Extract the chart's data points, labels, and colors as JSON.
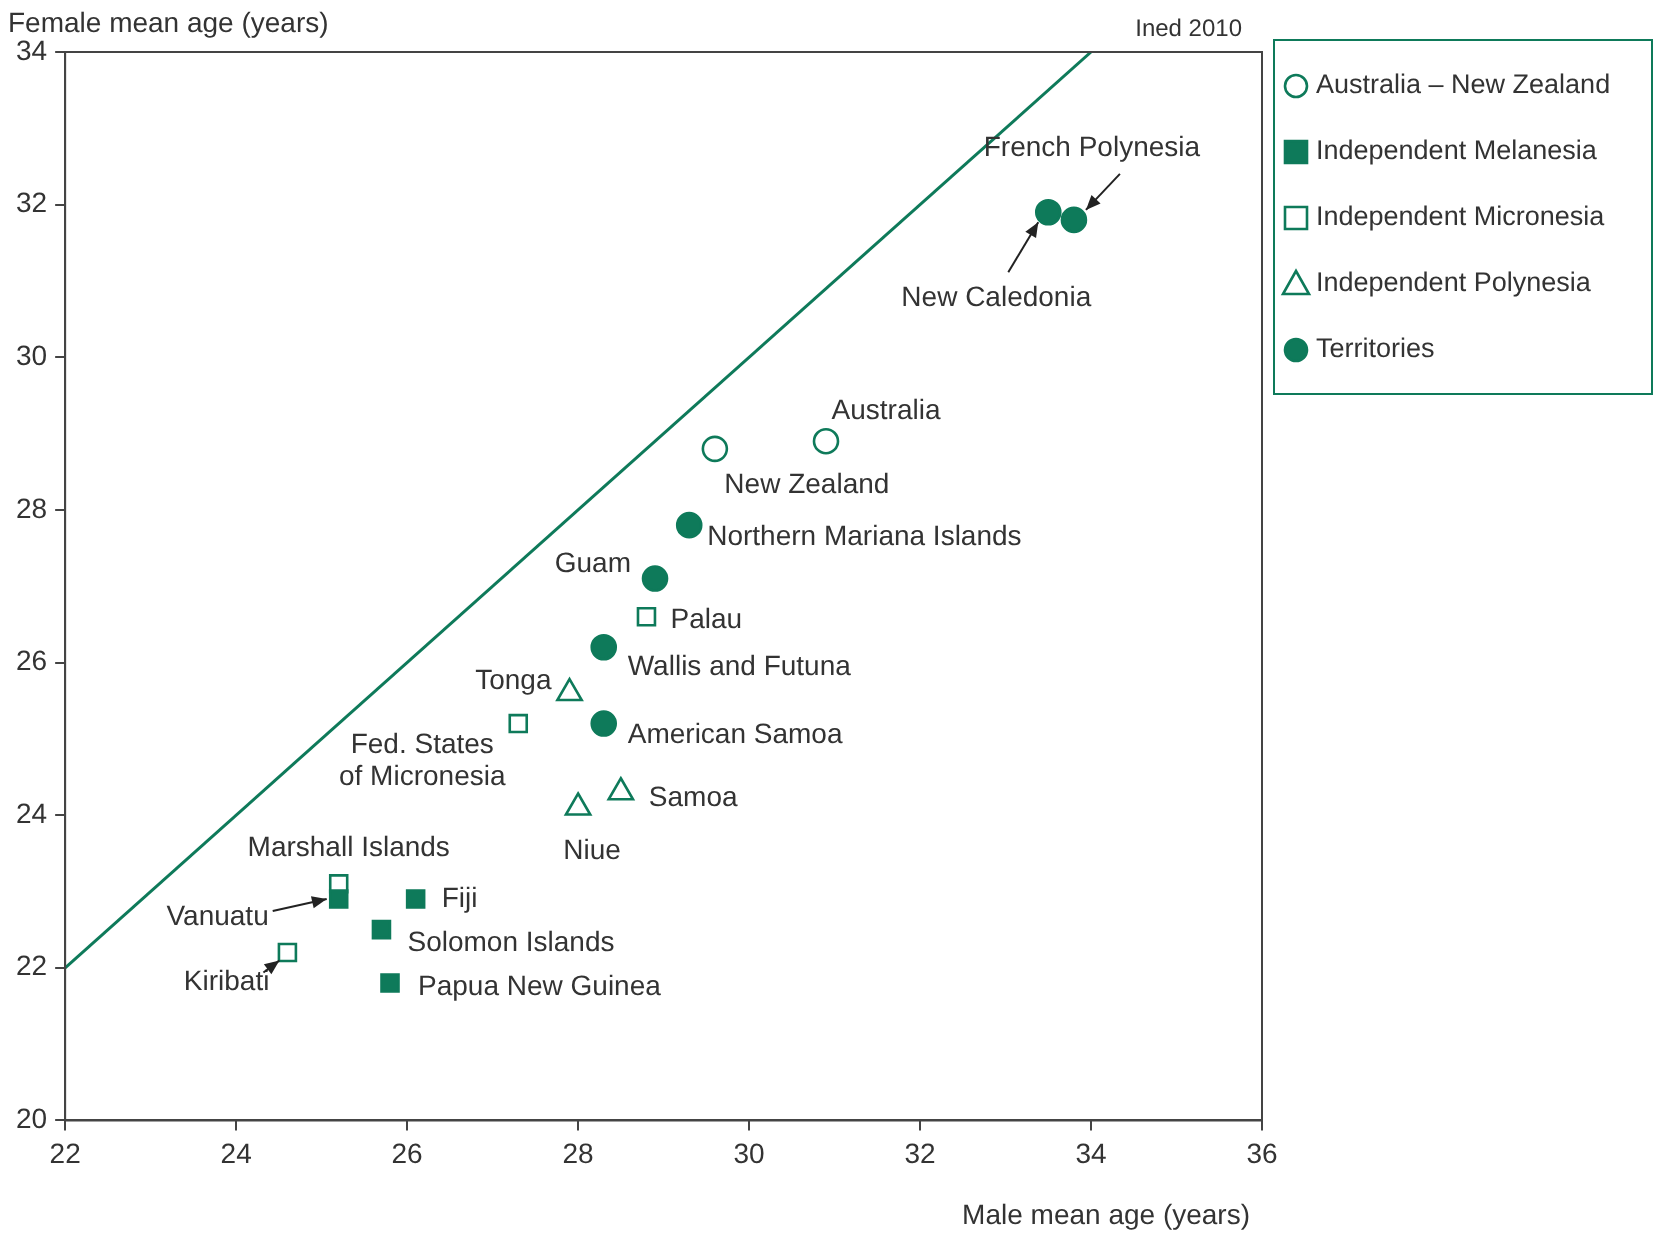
{
  "chart_data": {
    "type": "scatter",
    "xlabel": "Male mean age (years)",
    "ylabel": "Female mean age (years)",
    "xlim": [
      22,
      36
    ],
    "xticks": [
      22,
      24,
      26,
      28,
      30,
      32,
      34,
      36
    ],
    "ylim": [
      20,
      34
    ],
    "yticks": [
      20,
      22,
      24,
      26,
      28,
      30,
      32,
      34
    ],
    "grid": false,
    "legend": "top right",
    "series": [
      {
        "name": "Australia – New Zealand",
        "color": "#0e7a5a",
        "marker": "circle",
        "x": [
          30.9,
          29.6
        ],
        "values": [
          28.9,
          28.8
        ]
      },
      {
        "name": "Independent Melanesia",
        "color": "#0e7a5a",
        "marker": "square",
        "x": [
          25.2,
          26.1,
          25.7,
          25.8
        ],
        "values": [
          22.9,
          22.9,
          22.5,
          21.8
        ]
      },
      {
        "name": "Independent Micronesia",
        "color": "#0e7a5a",
        "marker": "square",
        "x": [
          28.8,
          27.3,
          25.2,
          24.6
        ],
        "values": [
          26.6,
          25.2,
          23.1,
          22.2
        ]
      },
      {
        "name": "Independent Polynesia",
        "color": "#0e7a5a",
        "marker": "triangle",
        "x": [
          27.9,
          28.5,
          28.0
        ],
        "values": [
          25.6,
          24.3,
          24.1
        ]
      },
      {
        "name": "Territories",
        "color": "#0e7a5a",
        "marker": "circle",
        "x": [
          33.8,
          33.5,
          29.3,
          28.9,
          28.3,
          28.3
        ],
        "values": [
          31.8,
          31.9,
          27.8,
          27.1,
          26.2,
          25.2
        ]
      },
      {
        "type": "line",
        "color": "#0e7a5a",
        "marker": "none",
        "x": [
          22,
          34
        ],
        "values": [
          22,
          34
        ]
      }
    ],
    "annotations": [
      "Ined 2010",
      {
        "text": "Australia",
        "x": 30.9,
        "y": 28.9
      },
      {
        "text": "New Zealand",
        "x": 29.6,
        "y": 28.8
      },
      {
        "text": "French Polynesia",
        "x": 33.8,
        "y": 31.8
      },
      {
        "text": "New Caledonia",
        "x": 33.5,
        "y": 31.9
      },
      {
        "text": "Northern Mariana Islands",
        "x": 29.3,
        "y": 27.8
      },
      {
        "text": "Guam",
        "x": 28.9,
        "y": 27.1
      },
      {
        "text": "Palau",
        "x": 28.8,
        "y": 26.6
      },
      {
        "text": "Wallis and Futuna",
        "x": 28.3,
        "y": 26.2
      },
      {
        "text": "Tonga",
        "x": 27.9,
        "y": 25.6
      },
      {
        "text": "Fed. States\nof Micronesia",
        "x": 27.3,
        "y": 25.2
      },
      {
        "text": "American Samoa",
        "x": 28.3,
        "y": 25.2
      },
      {
        "text": "Samoa",
        "x": 28.5,
        "y": 24.3
      },
      {
        "text": "Niue",
        "x": 28.0,
        "y": 24.1
      },
      {
        "text": "Marshall Islands",
        "x": 25.2,
        "y": 23.1
      },
      {
        "text": "Vanuatu",
        "x": 25.2,
        "y": 22.9
      },
      {
        "text": "Fiji",
        "x": 26.1,
        "y": 22.9
      },
      {
        "text": "Solomon Islands",
        "x": 25.7,
        "y": 22.5
      },
      {
        "text": "Kiribati",
        "x": 24.6,
        "y": 22.2
      },
      {
        "text": "Papua New Guinea",
        "x": 25.8,
        "y": 21.8
      }
    ]
  }
}
